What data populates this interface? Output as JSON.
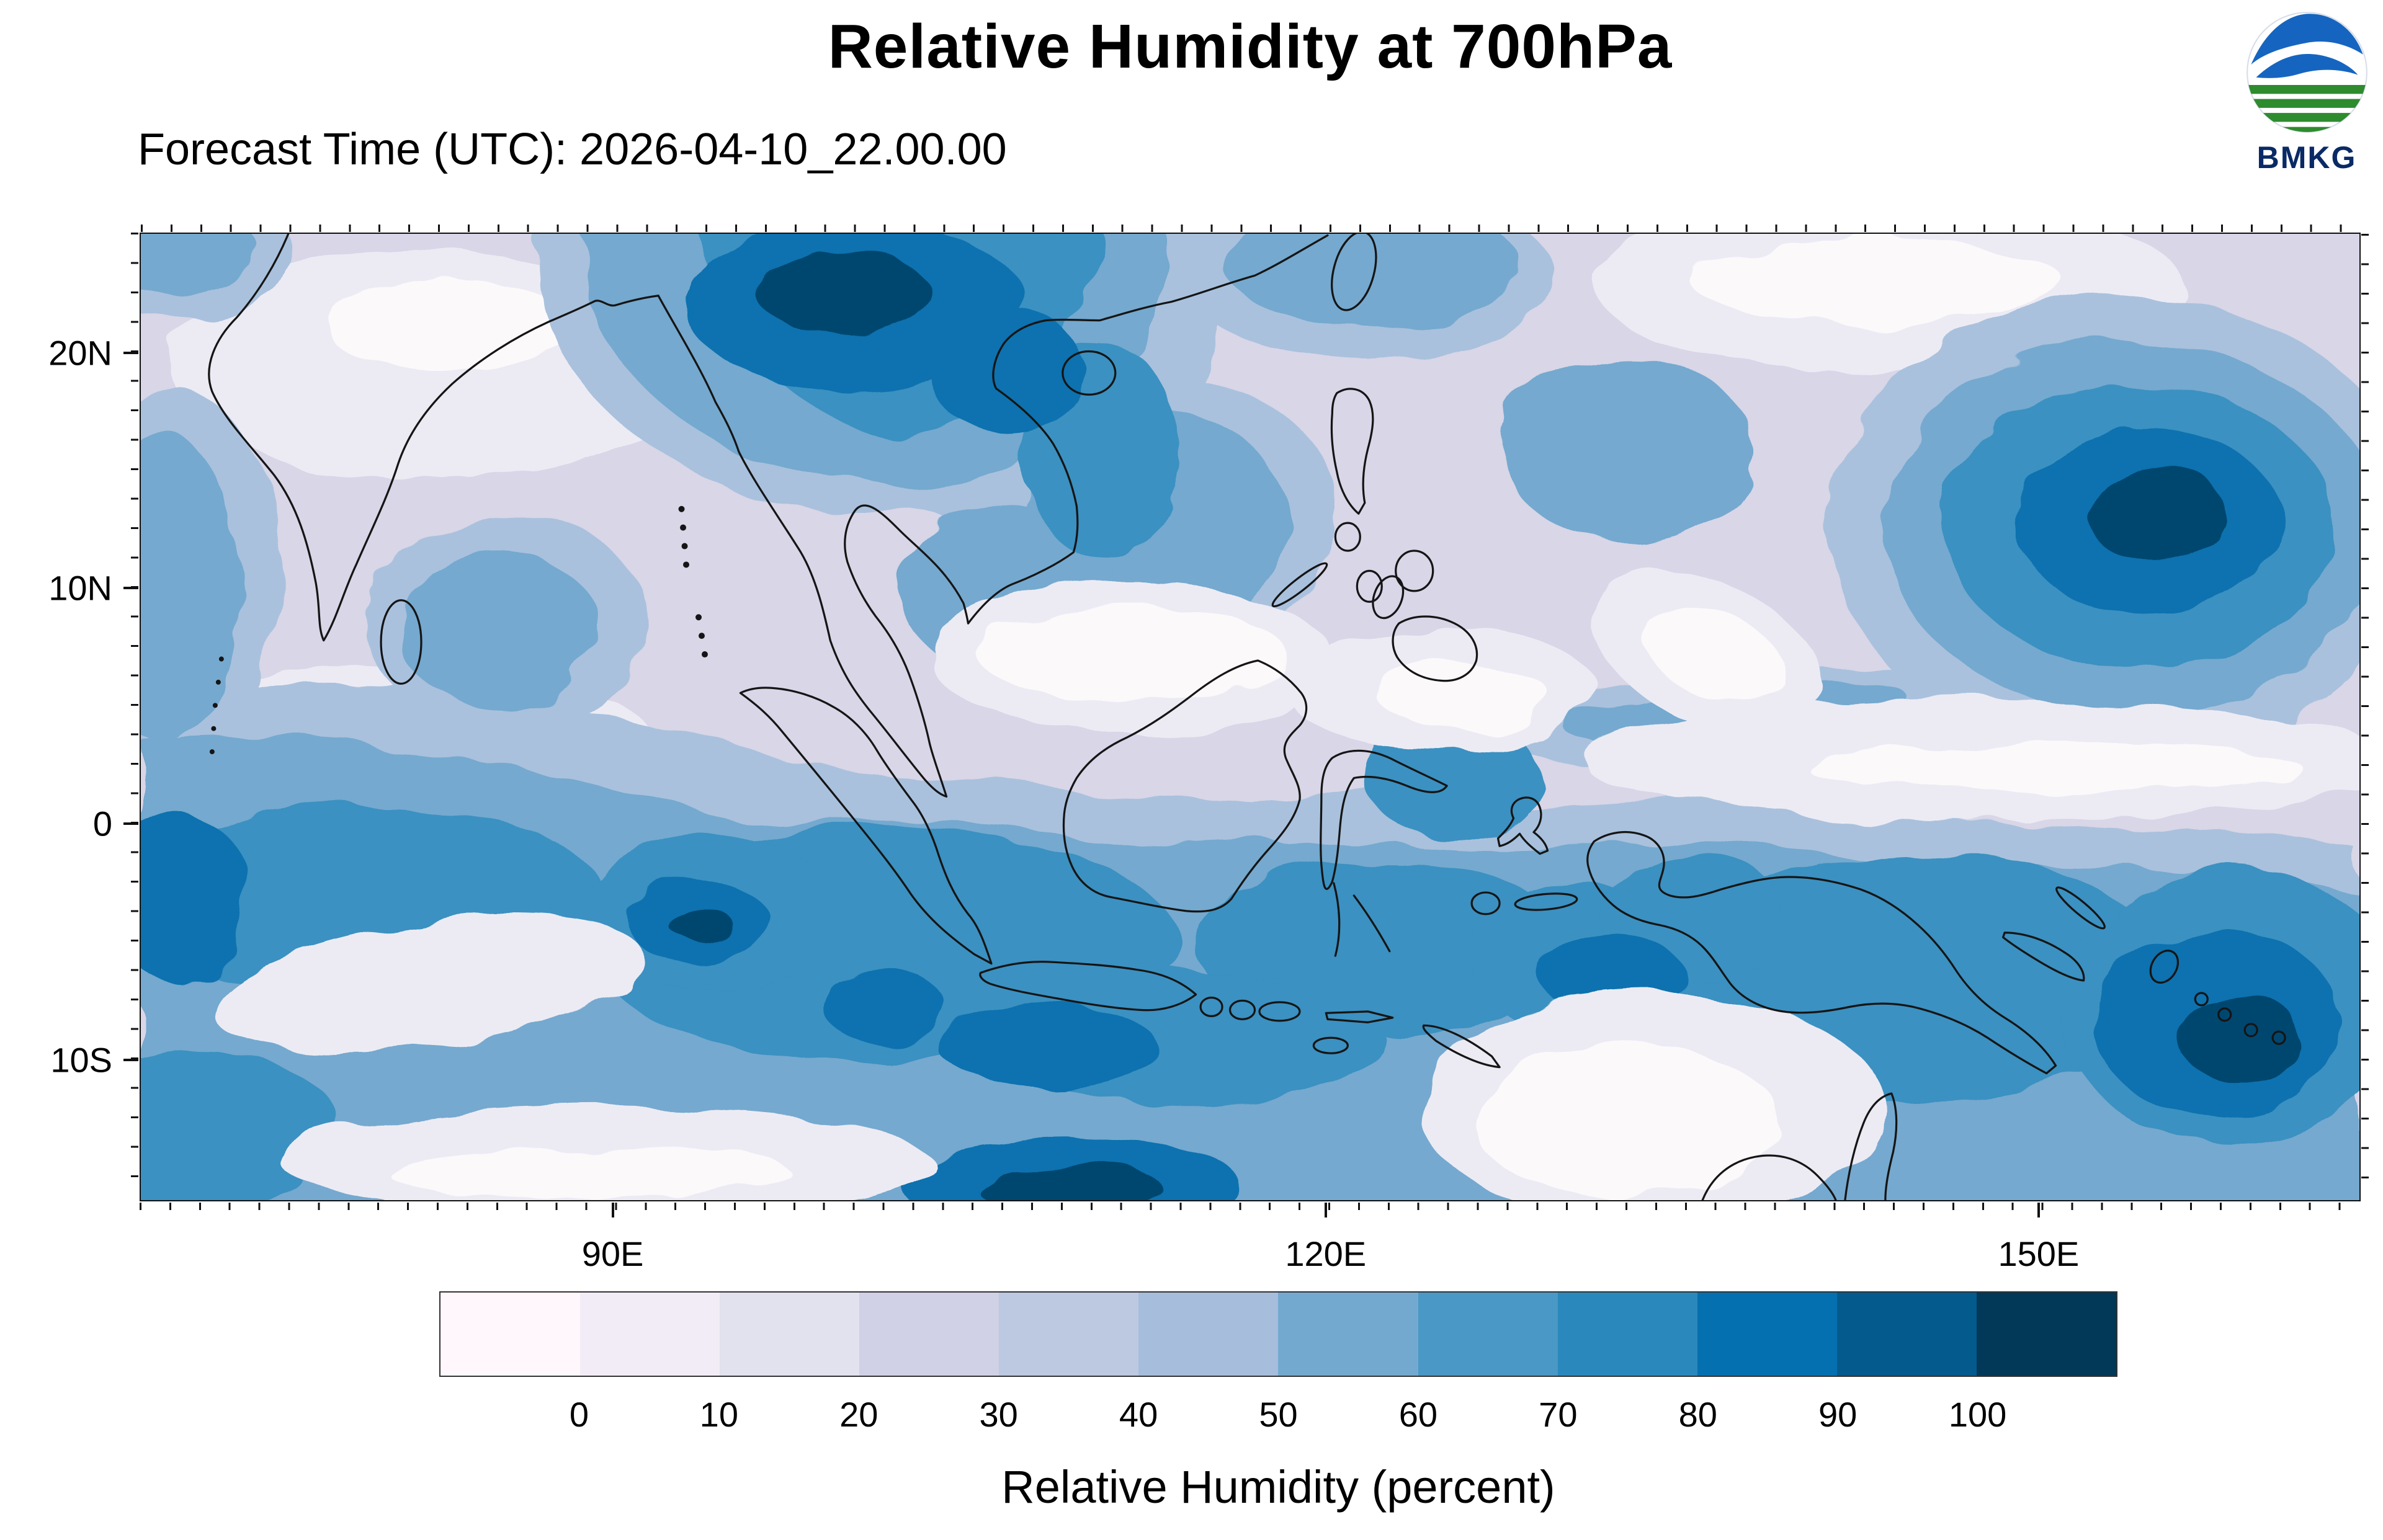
{
  "header": {
    "title": "Relative Humidity at 700hPa",
    "forecast_time": "Forecast Time (UTC): 2026-04-10_22.00.00",
    "logo_text": "BMKG"
  },
  "brand": {
    "logo_blue": "#1565c0",
    "logo_green": "#2e8b2e",
    "logo_text_color": "#0a2a66"
  },
  "map": {
    "lat_ticks": [
      {
        "label": "20N",
        "pos": 12.4
      },
      {
        "label": "10N",
        "pos": 36.7
      },
      {
        "label": "0",
        "pos": 61.0
      },
      {
        "label": "10S",
        "pos": 85.4
      }
    ],
    "lon_ticks": [
      {
        "label": "90E",
        "pos": 21.3
      },
      {
        "label": "120E",
        "pos": 53.4
      },
      {
        "label": "150E",
        "pos": 85.5
      }
    ]
  },
  "colorbar": {
    "label": "Relative Humidity (percent)",
    "tick_labels": [
      "0",
      "10",
      "20",
      "30",
      "40",
      "50",
      "60",
      "70",
      "80",
      "90",
      "100"
    ],
    "colors": [
      "#fff7fb",
      "#f1ecf5",
      "#e2e1ee",
      "#d0d1e6",
      "#bdc9e1",
      "#a6bddb",
      "#74a9cf",
      "#4a98c5",
      "#2a88bc",
      "#0570b0",
      "#045a8d",
      "#023858"
    ]
  },
  "chart_data": {
    "type": "heatmap",
    "title": "Relative Humidity at 700hPa",
    "subtitle": "Forecast Time (UTC): 2026-04-10_22.00.00",
    "variable": "Relative Humidity",
    "units": "percent",
    "pressure_level": "700hPa",
    "source": "BMKG",
    "x_ticks": [
      "90E",
      "120E",
      "150E"
    ],
    "y_ticks": [
      "20N",
      "10N",
      "0",
      "10S"
    ],
    "x_range_approx": [
      "70E",
      "163E"
    ],
    "y_range_approx": [
      "16S",
      "25N"
    ],
    "colorbar_levels": [
      0,
      10,
      20,
      30,
      40,
      50,
      60,
      70,
      80,
      90,
      100
    ],
    "colorbar_colors": [
      "#fff7fb",
      "#f1ecf5",
      "#e2e1ee",
      "#d0d1e6",
      "#bdc9e1",
      "#a6bddb",
      "#74a9cf",
      "#4a98c5",
      "#2a88bc",
      "#0570b0",
      "#045a8d",
      "#023858"
    ],
    "colorbar_label": "Relative Humidity (percent)",
    "legend_position": "bottom",
    "grid": false,
    "notable_features": [
      "High humidity (70-100%) across the equatorial band covering Sumatra, Borneo, Java, Sulawesi and the Banda Sea",
      "Large high-humidity spiral system near 150E, 12N east of the Philippines",
      "Very humid mass (80-100%) over Myanmar, northern Indochina and the northern Bay of Bengal",
      "Dry band (0-20%) stretching roughly along 5-10N from the Malay Peninsula to east of the Philippines",
      "Dry patch (0-20%) south of Sulawesi toward northern Australia and over interior India",
      "High humidity over New Guinea and the far southeastern Pacific corner of the domain"
    ]
  }
}
